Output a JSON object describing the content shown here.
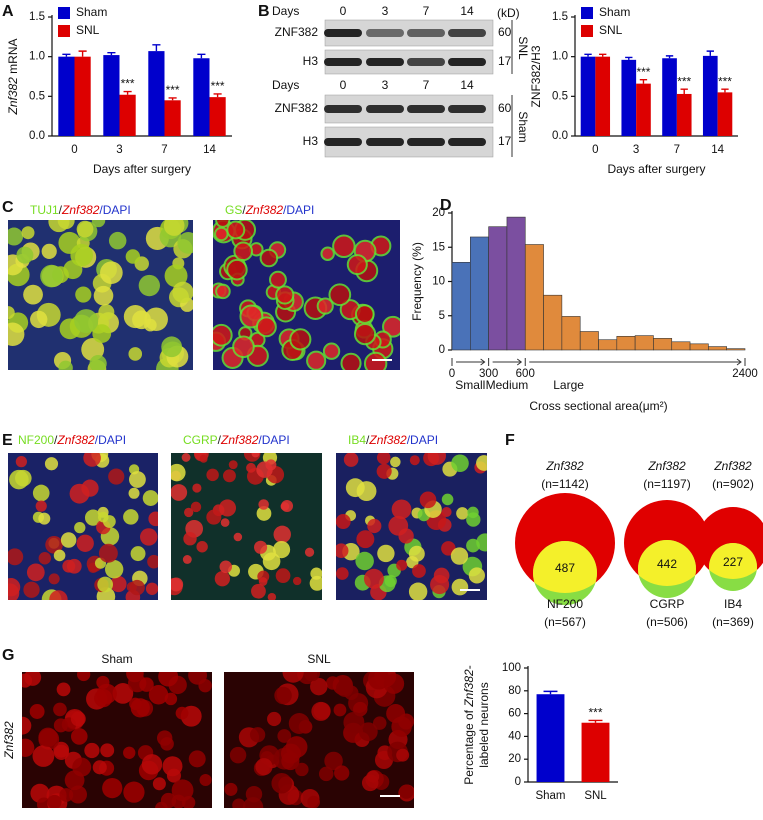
{
  "panel_labels": [
    "A",
    "B",
    "C",
    "D",
    "E",
    "F",
    "G"
  ],
  "chart_data": [
    {
      "type": "bar",
      "y_label": [
        {
          "text": "Znf382",
          "italic": true
        },
        {
          "text": " mRNA"
        }
      ],
      "x_label": "Days after surgery",
      "categories": [
        "0",
        "3",
        "7",
        "14"
      ],
      "series": [
        {
          "name": "Sham",
          "color": "#0000cc",
          "values": [
            1.0,
            1.02,
            1.07,
            0.98
          ],
          "errors": [
            0.03,
            0.03,
            0.08,
            0.05
          ]
        },
        {
          "name": "SNL",
          "color": "#dd0000",
          "values": [
            1.0,
            0.52,
            0.45,
            0.49
          ],
          "errors": [
            0.07,
            0.04,
            0.03,
            0.04
          ]
        }
      ],
      "significance": [
        null,
        "***",
        "***",
        "***"
      ],
      "ylim": [
        0,
        1.5
      ],
      "yticks": [
        {
          "value": 0,
          "label": "0.0"
        },
        {
          "value": 0.5,
          "label": "0.5"
        },
        {
          "value": 1,
          "label": "1.0"
        },
        {
          "value": 1.5,
          "label": "1.5"
        }
      ]
    },
    {
      "type": "bar",
      "y_label": [
        {
          "text": "ZNF382/H3"
        }
      ],
      "x_label": "Days after surgery",
      "categories": [
        "0",
        "3",
        "7",
        "14"
      ],
      "series": [
        {
          "name": "Sham",
          "color": "#0000cc",
          "values": [
            1.0,
            0.96,
            0.98,
            1.01
          ],
          "errors": [
            0.03,
            0.03,
            0.03,
            0.06
          ]
        },
        {
          "name": "SNL",
          "color": "#dd0000",
          "values": [
            1.0,
            0.66,
            0.53,
            0.55
          ],
          "errors": [
            0.03,
            0.05,
            0.06,
            0.04
          ]
        }
      ],
      "significance": [
        null,
        "***",
        "***",
        "***"
      ],
      "ylim": [
        0,
        1.5
      ],
      "yticks": [
        {
          "value": 0,
          "label": "0.0"
        },
        {
          "value": 0.5,
          "label": "0.5"
        },
        {
          "value": 1,
          "label": "1.0"
        },
        {
          "value": 1.5,
          "label": "1.5"
        }
      ]
    },
    {
      "type": "histogram",
      "y_label": "Frequency (%)",
      "x_label": "Cross sectional area(μm²)",
      "bins": [
        0,
        150,
        300,
        450,
        600,
        750,
        900,
        1050,
        1200,
        1350,
        1500,
        1650,
        1800,
        1950,
        2100,
        2250,
        2400
      ],
      "values": [
        12.8,
        16.5,
        18.0,
        19.4,
        15.4,
        8.0,
        4.9,
        2.7,
        1.5,
        2.0,
        2.1,
        1.7,
        1.2,
        0.9,
        0.5,
        0.2
      ],
      "size_classes": [
        {
          "label": "Small",
          "color": "#4a72b8",
          "range": [
            0,
            300
          ]
        },
        {
          "label": "Medium",
          "color": "#7b4fa0",
          "range": [
            300,
            600
          ]
        },
        {
          "label": "Large",
          "color": "#e08a3c",
          "range": [
            600,
            2400
          ]
        }
      ],
      "xlim": [
        0,
        2400
      ],
      "xticks": [
        0,
        300,
        600,
        2400
      ],
      "ylim": [
        0,
        20
      ],
      "yticks": [
        0,
        5,
        10,
        15,
        20
      ]
    },
    {
      "type": "bar",
      "y_label_lines": [
        [
          {
            "text": "Percentage of "
          },
          {
            "text": "Znf382",
            "italic": true
          },
          {
            "text": "-"
          }
        ],
        [
          {
            "text": "labeled neurons"
          }
        ]
      ],
      "categories": [
        "Sham",
        "SNL"
      ],
      "values": [
        77,
        52
      ],
      "errors": [
        2.5,
        2.0
      ],
      "colors": [
        "#0000cc",
        "#dd0000"
      ],
      "significance": [
        null,
        "***"
      ],
      "ylim": [
        0,
        100
      ],
      "yticks": [
        0,
        20,
        40,
        60,
        80,
        100
      ]
    }
  ],
  "blot": {
    "days_label": "Days",
    "days": [
      "0",
      "3",
      "7",
      "14"
    ],
    "unit": "(kD)",
    "proteins": [
      "ZNF382",
      "H3"
    ],
    "markers": [
      "60",
      "17"
    ],
    "groups": [
      "SNL",
      "Sham"
    ]
  },
  "stain_labels": {
    "C": [
      [
        {
          "text": "TUJ1",
          "color": "#77dd22"
        },
        {
          "text": "/",
          "color": "#222222"
        },
        {
          "text": "Znf382",
          "color": "#dd0000",
          "italic": true
        },
        {
          "text": "/DAPI",
          "color": "#2233cc"
        }
      ],
      [
        {
          "text": "GS",
          "color": "#77dd22"
        },
        {
          "text": "/",
          "color": "#222222"
        },
        {
          "text": "Znf382",
          "color": "#dd0000",
          "italic": true
        },
        {
          "text": "/DAPI",
          "color": "#2233cc"
        }
      ]
    ],
    "E": [
      [
        {
          "text": "NF200",
          "color": "#77dd22"
        },
        {
          "text": "/",
          "color": "#222222"
        },
        {
          "text": "Znf382",
          "color": "#dd0000",
          "italic": true
        },
        {
          "text": "/DAPI",
          "color": "#2233cc"
        }
      ],
      [
        {
          "text": "CGRP",
          "color": "#77dd22"
        },
        {
          "text": "/",
          "color": "#222222"
        },
        {
          "text": "Znf382",
          "color": "#dd0000",
          "italic": true
        },
        {
          "text": "/DAPI",
          "color": "#2233cc"
        }
      ],
      [
        {
          "text": "IB4",
          "color": "#77dd22"
        },
        {
          "text": "/",
          "color": "#222222"
        },
        {
          "text": "Znf382",
          "color": "#dd0000",
          "italic": true
        },
        {
          "text": "/DAPI",
          "color": "#2233cc"
        }
      ]
    ]
  },
  "venn": [
    {
      "set_a": "Znf382",
      "n_a": "(n=1142)",
      "overlap": 487,
      "set_b": "NF200",
      "n_b": "(n=567)"
    },
    {
      "set_a": "Znf382",
      "n_a": "(n=1197)",
      "overlap": 442,
      "set_b": "CGRP",
      "n_b": "(n=506)"
    },
    {
      "set_a": "Znf382",
      "n_a": "(n=902)",
      "overlap": 227,
      "set_b": "IB4",
      "n_b": "(n=369)"
    }
  ],
  "panel_g": {
    "conditions": [
      "Sham",
      "SNL"
    ],
    "y_label": "Znf382"
  }
}
